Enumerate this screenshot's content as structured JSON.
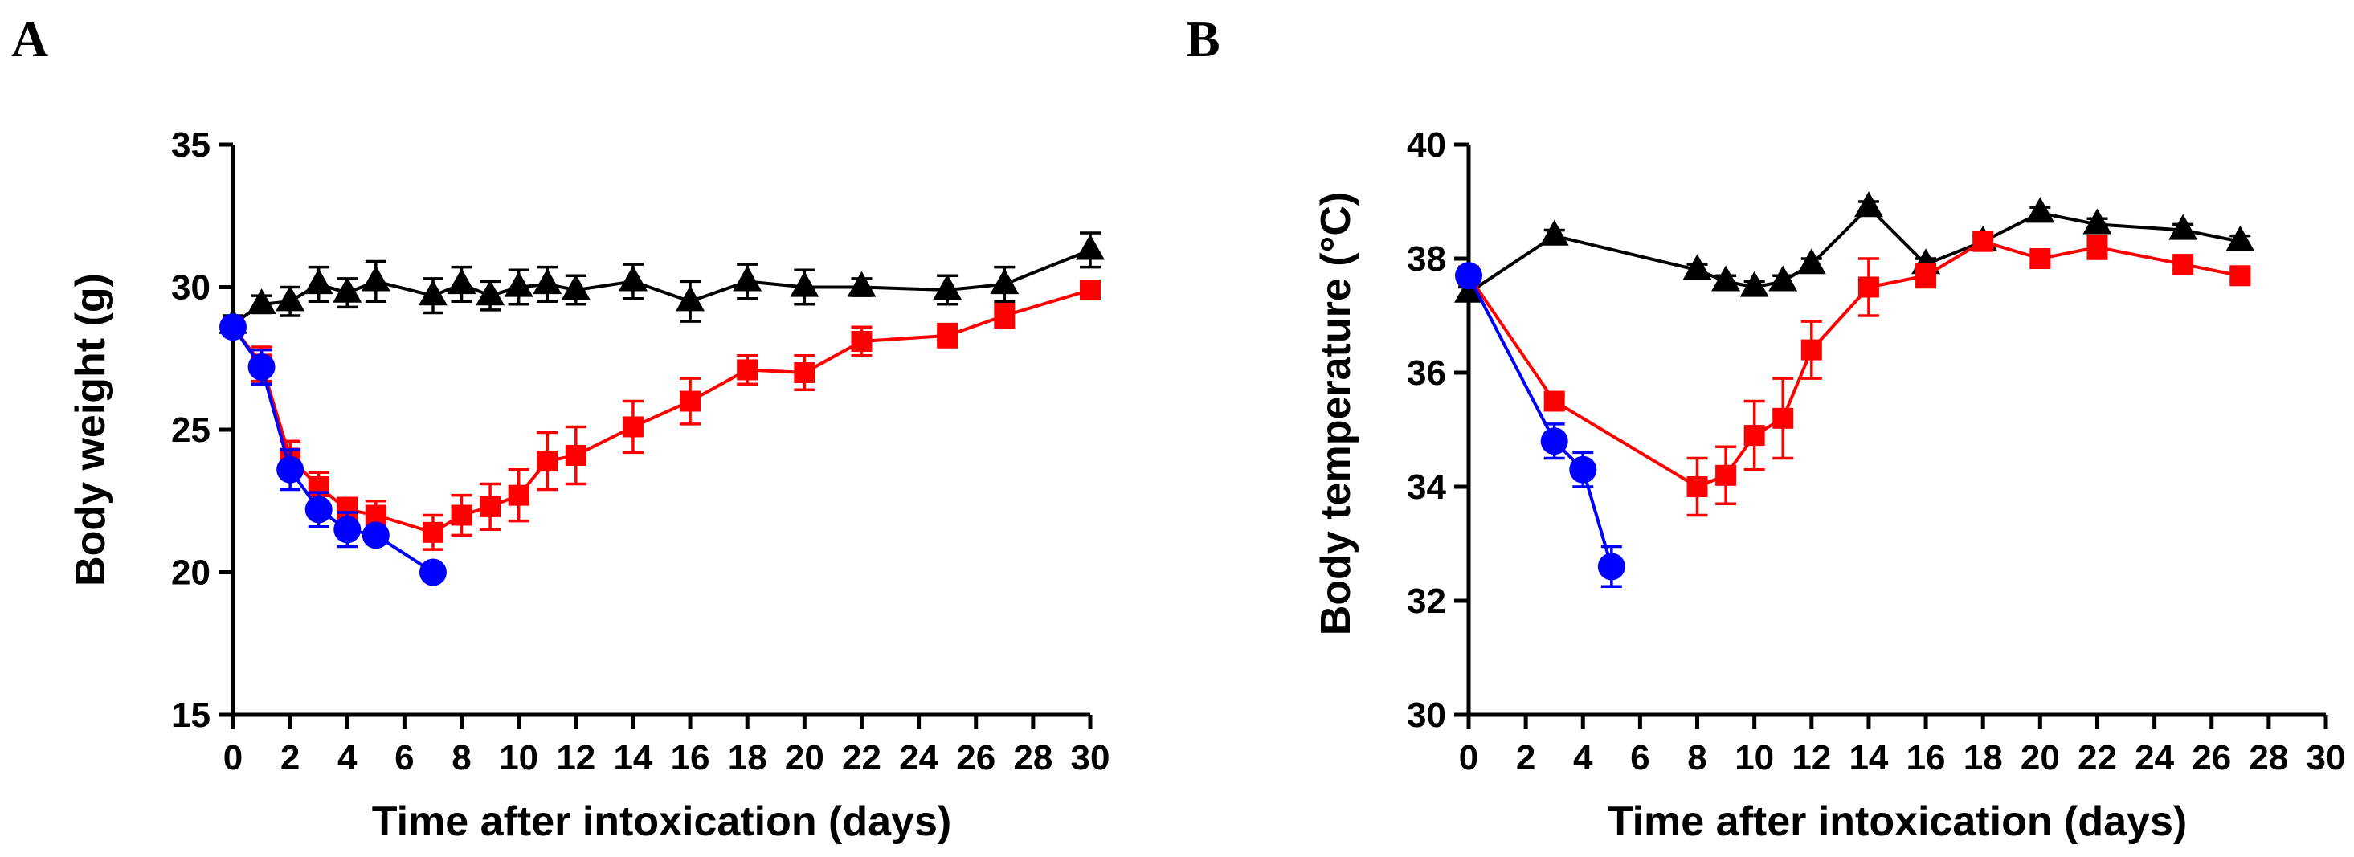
{
  "chart_data": [
    {
      "type": "line",
      "panel_label": "A",
      "xlabel": "Time after intoxication (days)",
      "ylabel": "Body weight (g)",
      "xlim": [
        0,
        30
      ],
      "ylim": [
        15,
        35
      ],
      "xticks": [
        0,
        2,
        4,
        6,
        8,
        10,
        12,
        14,
        16,
        18,
        20,
        22,
        24,
        26,
        28,
        30
      ],
      "yticks": [
        15,
        20,
        25,
        30,
        35
      ],
      "grid": false,
      "legend": "none",
      "series": [
        {
          "name": "black-triangle",
          "color": "#000000",
          "marker": "triangle",
          "x": [
            0,
            1,
            2,
            3,
            4,
            5,
            7,
            8,
            9,
            10,
            11,
            12,
            14,
            16,
            18,
            20,
            22,
            25,
            27,
            30
          ],
          "y": [
            28.7,
            29.4,
            29.5,
            30.1,
            29.8,
            30.2,
            29.7,
            30.1,
            29.7,
            30.0,
            30.1,
            29.9,
            30.2,
            29.5,
            30.2,
            30.0,
            30.0,
            29.9,
            30.1,
            31.3
          ],
          "err": [
            0.3,
            0.3,
            0.5,
            0.6,
            0.5,
            0.7,
            0.6,
            0.6,
            0.5,
            0.6,
            0.6,
            0.5,
            0.6,
            0.7,
            0.6,
            0.6,
            0.3,
            0.5,
            0.6,
            0.6
          ]
        },
        {
          "name": "red-square",
          "color": "#ff0000",
          "marker": "square",
          "x": [
            0,
            1,
            2,
            3,
            4,
            5,
            7,
            8,
            9,
            10,
            11,
            12,
            14,
            16,
            18,
            20,
            22,
            25,
            27,
            30
          ],
          "y": [
            28.6,
            27.3,
            24.0,
            23.0,
            22.2,
            22.0,
            21.4,
            22.0,
            22.3,
            22.7,
            23.9,
            24.1,
            25.1,
            26.0,
            27.1,
            27.0,
            28.1,
            28.3,
            29.0,
            29.9
          ],
          "err": [
            0.3,
            0.6,
            0.6,
            0.5,
            0.4,
            0.5,
            0.6,
            0.7,
            0.8,
            0.9,
            1.0,
            1.0,
            0.9,
            0.8,
            0.5,
            0.6,
            0.5,
            0.4,
            0.4,
            0.3
          ]
        },
        {
          "name": "blue-circle",
          "color": "#0000ff",
          "marker": "circle",
          "x": [
            0,
            1,
            2,
            3,
            4,
            5,
            7
          ],
          "y": [
            28.6,
            27.2,
            23.6,
            22.2,
            21.5,
            21.3,
            20.0
          ],
          "err": [
            0.3,
            0.6,
            0.7,
            0.6,
            0.6,
            0.3,
            0.2
          ]
        }
      ]
    },
    {
      "type": "line",
      "panel_label": "B",
      "xlabel": "Time after intoxication (days)",
      "ylabel": "Body temperature (°C)",
      "xlim": [
        0,
        30
      ],
      "ylim": [
        30,
        40
      ],
      "xticks": [
        0,
        2,
        4,
        6,
        8,
        10,
        12,
        14,
        16,
        18,
        20,
        22,
        24,
        26,
        28,
        30
      ],
      "yticks": [
        30,
        32,
        34,
        36,
        38,
        40
      ],
      "grid": false,
      "legend": "none",
      "series": [
        {
          "name": "black-triangle",
          "color": "#000000",
          "marker": "triangle",
          "x": [
            0,
            3,
            8,
            9,
            10,
            11,
            12,
            14,
            16,
            18,
            20,
            22,
            25,
            27
          ],
          "y": [
            37.4,
            38.4,
            37.8,
            37.6,
            37.5,
            37.6,
            37.9,
            38.9,
            37.9,
            38.3,
            38.8,
            38.6,
            38.5,
            38.3
          ],
          "err": [
            0.1,
            0.1,
            0.1,
            0.1,
            0.1,
            0.1,
            0.1,
            0.1,
            0.1,
            0.1,
            0.1,
            0.1,
            0.1,
            0.1
          ]
        },
        {
          "name": "red-square",
          "color": "#ff0000",
          "marker": "square",
          "x": [
            0,
            3,
            8,
            9,
            10,
            11,
            12,
            14,
            16,
            18,
            20,
            22,
            25,
            27
          ],
          "y": [
            37.7,
            35.5,
            34.0,
            34.2,
            34.9,
            35.2,
            36.4,
            37.5,
            37.7,
            38.3,
            38.0,
            38.2,
            37.9,
            37.7
          ],
          "err": [
            0.1,
            0.1,
            0.5,
            0.5,
            0.6,
            0.7,
            0.5,
            0.5,
            0.2,
            0.1,
            0.1,
            0.2,
            0.1,
            0.1
          ]
        },
        {
          "name": "blue-circle",
          "color": "#0000ff",
          "marker": "circle",
          "x": [
            0,
            3,
            4,
            5
          ],
          "y": [
            37.7,
            34.8,
            34.3,
            32.6
          ],
          "err": [
            0.1,
            0.3,
            0.3,
            0.35
          ]
        }
      ]
    }
  ]
}
